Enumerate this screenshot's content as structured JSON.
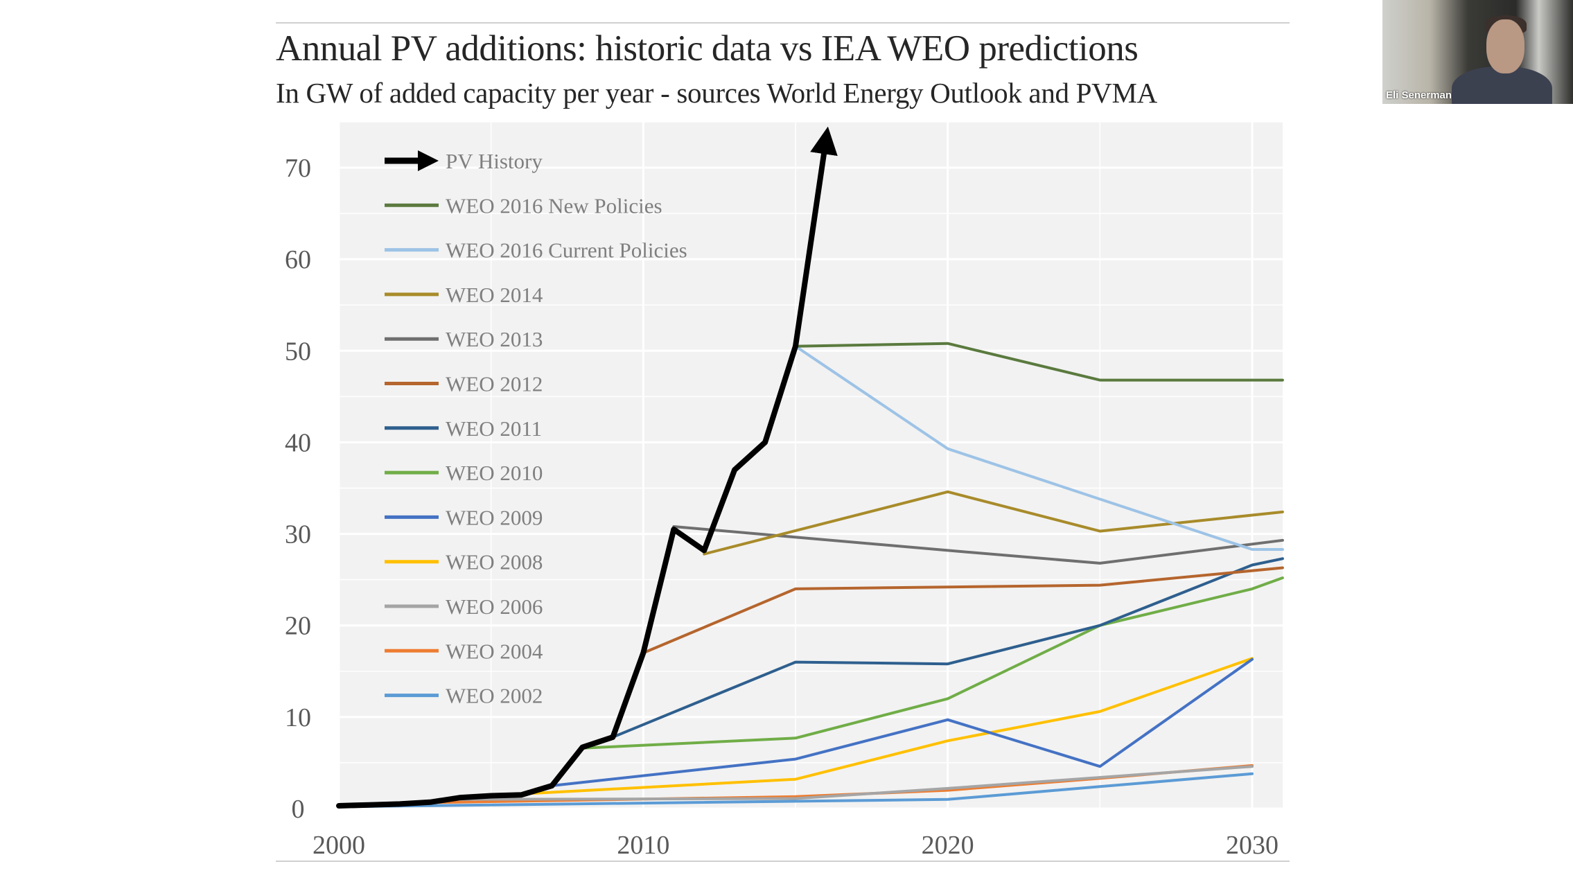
{
  "webcam": {
    "participant_name": "Eli Senerman"
  },
  "chart_data": {
    "type": "line",
    "title": "Annual PV additions: historic data vs IEA WEO predictions",
    "subtitle": "In GW of added capacity per year - sources World Energy Outlook and PVMA",
    "xlabel": "",
    "ylabel": "",
    "xlim": [
      2000,
      2031
    ],
    "ylim": [
      0,
      75
    ],
    "xticks": [
      2000,
      2010,
      2020,
      2030
    ],
    "yticks": [
      0,
      10,
      20,
      30,
      40,
      50,
      60,
      70
    ],
    "grid": true,
    "legend_placement": "top-left",
    "series": [
      {
        "name": "PV History",
        "color": "#000000",
        "arrow": true,
        "points": [
          [
            2000,
            0.3
          ],
          [
            2001,
            0.4
          ],
          [
            2002,
            0.5
          ],
          [
            2003,
            0.7
          ],
          [
            2004,
            1.2
          ],
          [
            2005,
            1.4
          ],
          [
            2006,
            1.5
          ],
          [
            2007,
            2.5
          ],
          [
            2008,
            6.7
          ],
          [
            2009,
            7.8
          ],
          [
            2010,
            17
          ],
          [
            2011,
            30.5
          ],
          [
            2012,
            28.2
          ],
          [
            2013,
            37
          ],
          [
            2014,
            40
          ],
          [
            2015,
            50.5
          ],
          [
            2016,
            73
          ]
        ]
      },
      {
        "name": "WEO 2016 New Policies",
        "color": "#5a7a3e",
        "points": [
          [
            2015,
            50.5
          ],
          [
            2020,
            50.8
          ],
          [
            2025,
            46.8
          ],
          [
            2031,
            46.8
          ]
        ]
      },
      {
        "name": "WEO 2016 Current Policies",
        "color": "#9dc3e6",
        "points": [
          [
            2015,
            50.5
          ],
          [
            2020,
            39.3
          ],
          [
            2025,
            33.8
          ],
          [
            2030,
            28.3
          ],
          [
            2031,
            28.3
          ]
        ]
      },
      {
        "name": "WEO 2014",
        "color": "#a88b2a",
        "points": [
          [
            2012,
            27.8
          ],
          [
            2020,
            34.6
          ],
          [
            2025,
            30.3
          ],
          [
            2031,
            32.4
          ]
        ]
      },
      {
        "name": "WEO 2013",
        "color": "#6f6f6f",
        "points": [
          [
            2011,
            30.8
          ],
          [
            2020,
            28.2
          ],
          [
            2025,
            26.8
          ],
          [
            2031,
            29.3
          ]
        ]
      },
      {
        "name": "WEO 2012",
        "color": "#b5652d",
        "points": [
          [
            2010,
            17
          ],
          [
            2015,
            24
          ],
          [
            2020,
            24.2
          ],
          [
            2025,
            24.4
          ],
          [
            2031,
            26.3
          ]
        ]
      },
      {
        "name": "WEO 2011",
        "color": "#2e5f8e",
        "points": [
          [
            2009,
            7.8
          ],
          [
            2015,
            16
          ],
          [
            2020,
            15.8
          ],
          [
            2025,
            20
          ],
          [
            2030,
            26.6
          ],
          [
            2031,
            27.3
          ]
        ]
      },
      {
        "name": "WEO 2010",
        "color": "#70ad47",
        "points": [
          [
            2008,
            6.6
          ],
          [
            2015,
            7.7
          ],
          [
            2020,
            12
          ],
          [
            2025,
            20
          ],
          [
            2030,
            24
          ],
          [
            2031,
            25.2
          ]
        ]
      },
      {
        "name": "WEO 2009",
        "color": "#4472c4",
        "points": [
          [
            2007,
            2.5
          ],
          [
            2015,
            5.4
          ],
          [
            2020,
            9.7
          ],
          [
            2025,
            4.6
          ],
          [
            2030,
            16.3
          ]
        ]
      },
      {
        "name": "WEO 2008",
        "color": "#ffc000",
        "points": [
          [
            2006,
            1.6
          ],
          [
            2015,
            3.2
          ],
          [
            2020,
            7.4
          ],
          [
            2025,
            10.6
          ],
          [
            2030,
            16.4
          ]
        ]
      },
      {
        "name": "WEO 2006",
        "color": "#a5a5a5",
        "points": [
          [
            2004,
            1.0
          ],
          [
            2015,
            1.1
          ],
          [
            2020,
            2.2
          ],
          [
            2030,
            4.6
          ]
        ]
      },
      {
        "name": "WEO 2004",
        "color": "#ed7d31",
        "points": [
          [
            2002,
            0.6
          ],
          [
            2015,
            1.3
          ],
          [
            2020,
            2.0
          ],
          [
            2025,
            3.3
          ],
          [
            2030,
            4.7
          ]
        ]
      },
      {
        "name": "WEO 2002",
        "color": "#5b9bd5",
        "points": [
          [
            2000,
            0.2
          ],
          [
            2010,
            0.6
          ],
          [
            2020,
            1.0
          ],
          [
            2025,
            2.4
          ],
          [
            2030,
            3.8
          ]
        ]
      }
    ]
  }
}
